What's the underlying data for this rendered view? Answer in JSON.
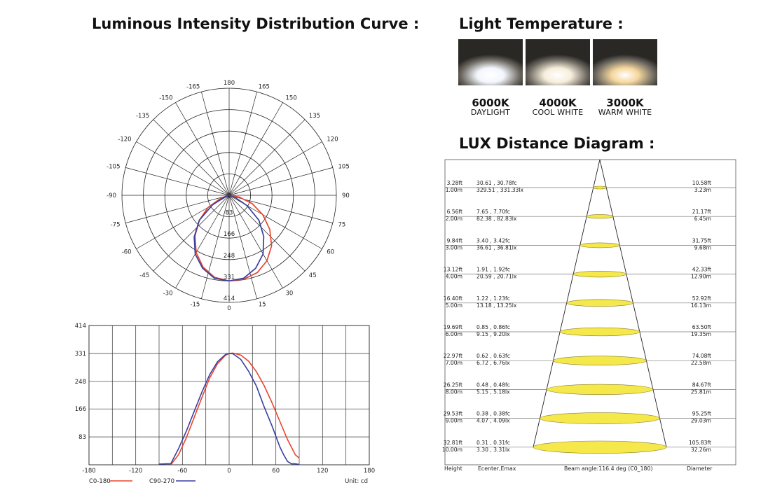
{
  "titles": {
    "intensity": "Luminous Intensity Distribution Curve :",
    "temperature": "Light Temperature :",
    "lux": "LUX Distance Diagram :"
  },
  "temperatures": [
    {
      "kelvin": "6000K",
      "name": "DAYLIGHT",
      "color": "#f2f6fc"
    },
    {
      "kelvin": "4000K",
      "name": "COOL WHITE",
      "color": "#f7eedb"
    },
    {
      "kelvin": "3000K",
      "name": "WARM WHITE",
      "color": "#f6d79e"
    }
  ],
  "chart_data": [
    {
      "type": "polar",
      "angle_labels": [
        "180",
        "165",
        "150",
        "135",
        "120",
        "105",
        "90",
        "75",
        "60",
        "45",
        "30",
        "15",
        "0",
        "-15",
        "-30",
        "-45",
        "-60",
        "-75",
        "-90",
        "-105",
        "-120",
        "-135",
        "-150",
        "-165"
      ],
      "radial_labels": [
        "83",
        "166",
        "248",
        "331",
        "414"
      ],
      "rmax": 414,
      "series": [
        {
          "name": "C0-180",
          "color": "#e8452c",
          "angles": [
            -90,
            -80,
            -70,
            -60,
            -50,
            -40,
            -30,
            -20,
            -10,
            0,
            10,
            20,
            30,
            40,
            50,
            60,
            70,
            80,
            90
          ],
          "values": [
            0,
            5,
            35,
            95,
            150,
            205,
            255,
            295,
            322,
            331,
            329,
            318,
            292,
            255,
            205,
            150,
            95,
            40,
            0
          ]
        },
        {
          "name": "C90-270",
          "color": "#3a3fa0",
          "angles": [
            -90,
            -80,
            -70,
            -60,
            -50,
            -40,
            -30,
            -20,
            -10,
            0,
            10,
            20,
            30,
            40,
            50,
            60,
            70,
            80,
            90
          ],
          "values": [
            0,
            0,
            18,
            75,
            150,
            210,
            262,
            300,
            326,
            331,
            325,
            300,
            262,
            208,
            150,
            80,
            25,
            0,
            0
          ]
        }
      ]
    },
    {
      "type": "line",
      "xlim": [
        -180,
        180
      ],
      "ylim": [
        0,
        414
      ],
      "x_ticks": [
        "-180",
        "-120",
        "-60",
        "0",
        "60",
        "120",
        "180"
      ],
      "y_ticks": [
        "414",
        "331",
        "248",
        "166",
        "83"
      ],
      "unit": "Unit: cd",
      "series": [
        {
          "name": "C0-180",
          "color": "#e8452c",
          "x": [
            -75,
            -65,
            -55,
            -45,
            -35,
            -25,
            -15,
            -5,
            0,
            5,
            15,
            25,
            35,
            45,
            55,
            65,
            75,
            85,
            90
          ],
          "y": [
            0,
            30,
            80,
            140,
            200,
            258,
            300,
            325,
            331,
            332,
            326,
            308,
            277,
            235,
            185,
            130,
            75,
            30,
            20
          ]
        },
        {
          "name": "C90-270",
          "color": "#3a3fa0",
          "x": [
            -90,
            -80,
            -75,
            -65,
            -55,
            -45,
            -35,
            -25,
            -15,
            -5,
            0,
            5,
            15,
            25,
            35,
            45,
            55,
            65,
            70,
            75,
            80,
            85,
            90
          ],
          "y": [
            2,
            3,
            3,
            48,
            100,
            158,
            216,
            268,
            306,
            327,
            331,
            330,
            313,
            278,
            234,
            172,
            116,
            54,
            30,
            10,
            3,
            3,
            1
          ]
        }
      ]
    },
    {
      "type": "table",
      "title": "LUX Distance Diagram",
      "columns": [
        "Height",
        "Ecenter,Emax",
        "Beam angle:116.4 deg (C0_180)",
        "Diameter"
      ],
      "rows": [
        {
          "h_ft": "3.28ft",
          "h_m": "1.00m",
          "fc": "30.61 , 30.78fc",
          "lx": "329.51 , 331.33lx",
          "d_ft": "10.58ft",
          "d_m": "3.23m"
        },
        {
          "h_ft": "6.56ft",
          "h_m": "2.00m",
          "fc": "7.65 , 7.70fc",
          "lx": "82.38 , 82.83lx",
          "d_ft": "21.17ft",
          "d_m": "6.45m"
        },
        {
          "h_ft": "9.84ft",
          "h_m": "3.00m",
          "fc": "3.40 , 3.42fc",
          "lx": "36.61 , 36.81lx",
          "d_ft": "31.75ft",
          "d_m": "9.68m"
        },
        {
          "h_ft": "13.12ft",
          "h_m": "4.00m",
          "fc": "1.91 , 1.92fc",
          "lx": "20.59 , 20.71lx",
          "d_ft": "42.33ft",
          "d_m": "12.90m"
        },
        {
          "h_ft": "16.40ft",
          "h_m": "5.00m",
          "fc": "1.22 , 1.23fc",
          "lx": "13.18 , 13.25lx",
          "d_ft": "52.92ft",
          "d_m": "16.13m"
        },
        {
          "h_ft": "19.69ft",
          "h_m": "6.00m",
          "fc": "0.85 , 0.86fc",
          "lx": "9.15 , 9.20lx",
          "d_ft": "63.50ft",
          "d_m": "19.35m"
        },
        {
          "h_ft": "22.97ft",
          "h_m": "7.00m",
          "fc": "0.62 , 0.63fc",
          "lx": "6.72 , 6.76lx",
          "d_ft": "74.08ft",
          "d_m": "22.58m"
        },
        {
          "h_ft": "26.25ft",
          "h_m": "8.00m",
          "fc": "0.48 , 0.48fc",
          "lx": "5.15 , 5.18lx",
          "d_ft": "84.67ft",
          "d_m": "25.81m"
        },
        {
          "h_ft": "29.53ft",
          "h_m": "9.00m",
          "fc": "0.38 , 0.38fc",
          "lx": "4.07 , 4.09lx",
          "d_ft": "95.25ft",
          "d_m": "29.03m"
        },
        {
          "h_ft": "32.81ft",
          "h_m": "10.00m",
          "fc": "0.31 , 0.31fc",
          "lx": "3.30 , 3.31lx",
          "d_ft": "105.83ft",
          "d_m": "32.26m"
        }
      ],
      "ellipse_color": "#f5e84a"
    }
  ]
}
